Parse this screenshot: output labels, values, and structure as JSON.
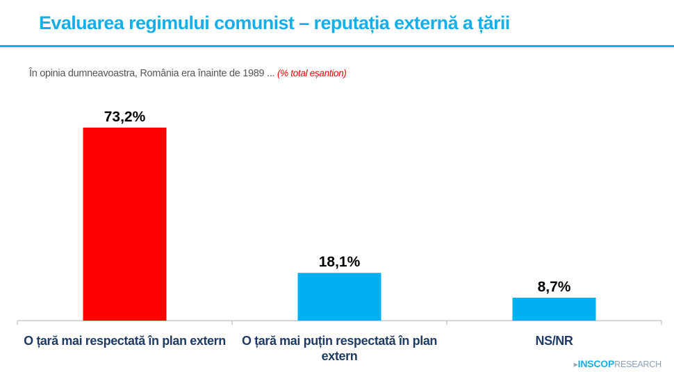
{
  "header": {
    "title": "Evaluarea regimului comunist – reputația externă a țării"
  },
  "subtitle": {
    "text": "În opinia dumneavoastra, România era înainte de 1989 ...",
    "note": "(% total eșantion)"
  },
  "chart_data": {
    "type": "bar",
    "categories": [
      "O țară mai respectată în plan extern",
      "O țară mai puțin respectată în plan extern",
      "NS/NR"
    ],
    "values": [
      73.2,
      18.1,
      8.7
    ],
    "data_labels": [
      "73,2%",
      "18,1%",
      "8,7%"
    ],
    "colors": [
      "#ff0000",
      "#00b0f0",
      "#00b0f0"
    ],
    "ylim": [
      0,
      80
    ],
    "grid": false,
    "legend": "none"
  },
  "logo": {
    "brand": "INSCOP",
    "suffix": "RESEARCH"
  }
}
